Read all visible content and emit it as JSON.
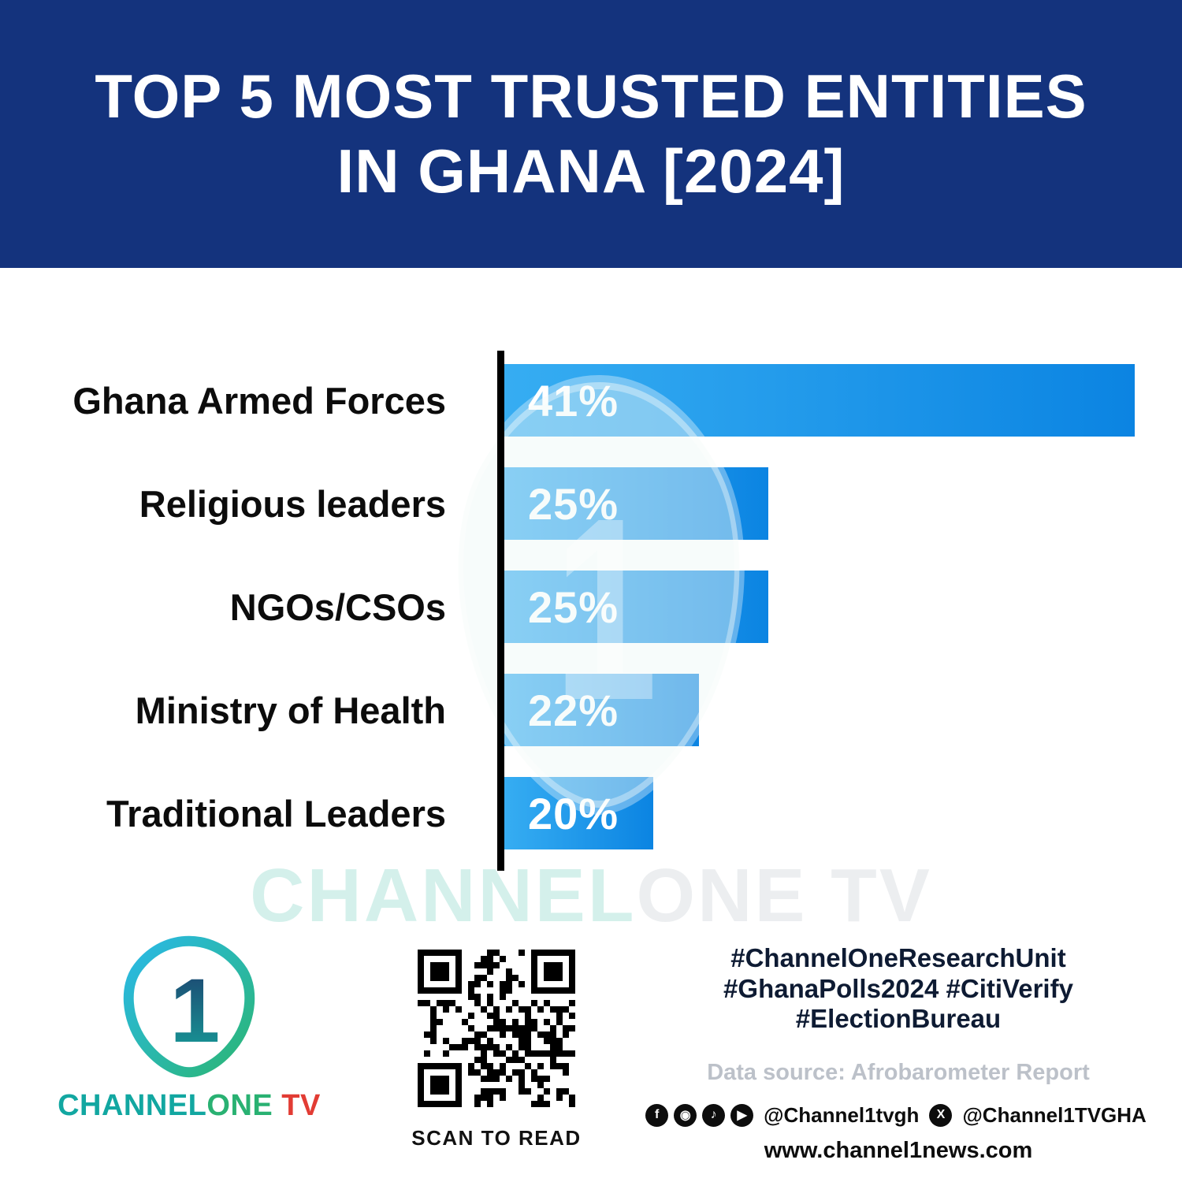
{
  "header": {
    "title_line1": "TOP 5 MOST TRUSTED ENTITIES",
    "title_line2": "IN GHANA [2024]"
  },
  "chart_data": {
    "type": "bar",
    "orientation": "horizontal",
    "title": "Top 5 Most Trusted Entities in Ghana [2024]",
    "categories": [
      "Ghana Armed Forces",
      "Religious leaders",
      "NGOs/CSOs",
      "Ministry of Health",
      "Traditional Leaders"
    ],
    "values": [
      41,
      25,
      25,
      22,
      20
    ],
    "value_labels": [
      "41%",
      "25%",
      "25%",
      "22%",
      "20%"
    ],
    "xlabel": "",
    "ylabel": "",
    "xlim": [
      13.5,
      41
    ],
    "grid": false,
    "legend": false,
    "bar_color_start": "#36adf2",
    "bar_color_end": "#0b84e2"
  },
  "watermark": {
    "part1": "CHANNEL",
    "part2": "ONE TV"
  },
  "footer": {
    "brand": {
      "channel": "CHANNEL",
      "one": "ONE",
      "tv": " TV",
      "mark": "1"
    },
    "qr_caption": "SCAN TO READ",
    "hashtags": [
      "#ChannelOneResearchUnit",
      "#GhanaPolls2024 #CitiVerify",
      "#ElectionBureau"
    ],
    "data_source": "Data source: Afrobarometer Report",
    "social": {
      "icons": {
        "facebook": "f",
        "instagram": "◉",
        "tiktok": "♪",
        "youtube": "▶",
        "x": "X"
      },
      "handle1": "@Channel1tvgh",
      "handle2": "@Channel1TVGHA"
    },
    "website": "www.channel1news.com"
  },
  "colors": {
    "header_bg": "#14337d",
    "bar_gradient_start": "#36adf2",
    "bar_gradient_end": "#0b84e2",
    "axis_black": "#000000",
    "brand_teal": "#12a7a1",
    "brand_green": "#29b172",
    "brand_red": "#e23c34",
    "hashtag_text": "#0e1b33",
    "source_gray": "#bcc1c9"
  }
}
